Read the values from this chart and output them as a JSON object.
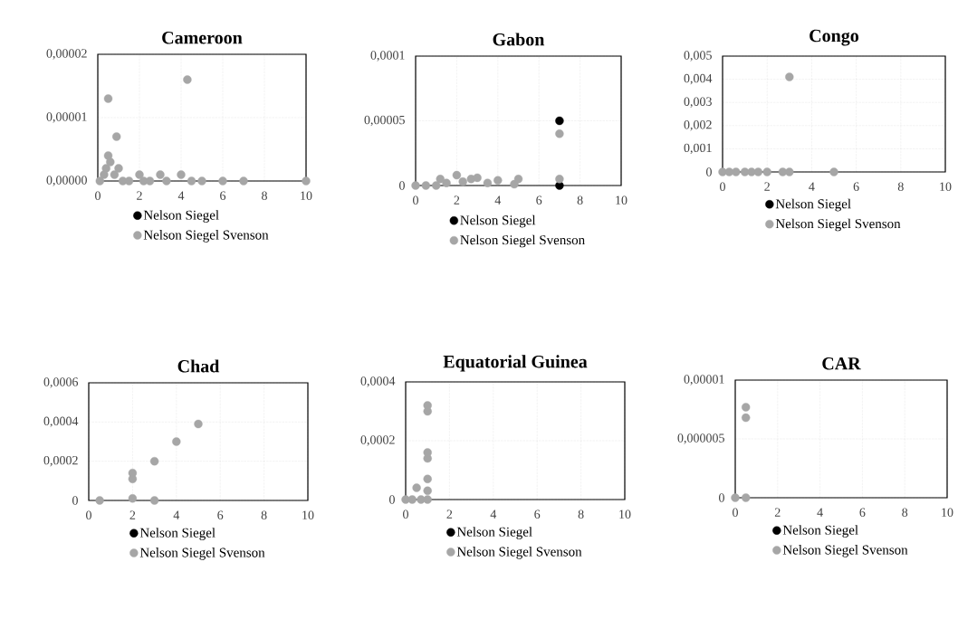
{
  "chart_data": [
    {
      "type": "scatter",
      "title": "Cameroon",
      "grid": true,
      "legend": "bottom",
      "xlim": [
        0,
        10
      ],
      "xticks": [
        0,
        2,
        4,
        6,
        8,
        10
      ],
      "ylim": [
        0,
        2e-05
      ],
      "yticks": [
        {
          "value": 0,
          "label": "0,00000"
        },
        {
          "value": 1e-05,
          "label": "0,00001"
        },
        {
          "value": 2e-05,
          "label": "0,00002"
        }
      ],
      "series": [
        {
          "name": "Nelson Siegel",
          "color": "#000000"
        },
        {
          "name": "Nelson Siegel Svenson",
          "color": "#a6a6a6",
          "x": [
            0.1,
            0.2,
            0.3,
            0.4,
            0.5,
            0.5,
            0.6,
            0.8,
            0.9,
            1,
            1.2,
            1.5,
            2,
            2.2,
            2.5,
            3,
            3.3,
            4,
            4.3,
            4.5,
            5,
            6,
            7,
            10
          ],
          "values": [
            0,
            null,
            1e-06,
            2e-06,
            4e-06,
            1.3e-05,
            3e-06,
            1e-06,
            7e-06,
            2e-06,
            0,
            0,
            1e-06,
            0,
            0,
            1e-06,
            0,
            1e-06,
            1.6e-05,
            0,
            0,
            0,
            0,
            0
          ]
        }
      ]
    },
    {
      "type": "scatter",
      "title": "Gabon",
      "grid": true,
      "legend": "bottom",
      "xlim": [
        0,
        10
      ],
      "xticks": [
        0,
        2,
        4,
        6,
        8,
        10
      ],
      "ylim": [
        0,
        0.0001
      ],
      "yticks": [
        0,
        {
          "value": 5e-05,
          "label": "0,00005"
        },
        {
          "value": 0.0001,
          "label": "0,0001"
        }
      ],
      "series": [
        {
          "name": "Nelson Siegel",
          "color": "#000000",
          "x": [
            7,
            7
          ],
          "values": [
            5e-05,
            0
          ]
        },
        {
          "name": "Nelson Siegel Svenson",
          "color": "#a6a6a6",
          "x": [
            0,
            0.5,
            1,
            1.2,
            1.5,
            2,
            2.3,
            2.7,
            3,
            3.5,
            4,
            4.8,
            5,
            7,
            7
          ],
          "values": [
            0,
            0,
            0,
            5e-06,
            2e-06,
            8e-06,
            3e-06,
            5e-06,
            6e-06,
            2e-06,
            4e-06,
            1e-06,
            5e-06,
            4e-05,
            5e-06
          ]
        }
      ]
    },
    {
      "type": "scatter",
      "title": "Congo",
      "grid": true,
      "legend": "bottom",
      "xlim": [
        0,
        10
      ],
      "xticks": [
        0,
        2,
        4,
        6,
        8,
        10
      ],
      "ylim": [
        0,
        0.005
      ],
      "yticks": [
        0,
        {
          "value": 0.001,
          "label": "0,001"
        },
        {
          "value": 0.002,
          "label": "0,002"
        },
        {
          "value": 0.003,
          "label": "0,003"
        },
        {
          "value": 0.004,
          "label": "0,004"
        },
        {
          "value": 0.005,
          "label": "0,005"
        }
      ],
      "series": [
        {
          "name": "Nelson Siegel",
          "color": "#000000"
        },
        {
          "name": "Nelson Siegel Svenson",
          "color": "#a6a6a6",
          "x": [
            0,
            0.3,
            0.6,
            1,
            1.3,
            1.6,
            2,
            2.7,
            3,
            3,
            5
          ],
          "values": [
            0,
            0,
            0,
            0,
            0,
            0,
            0,
            0,
            0.0041,
            0,
            0
          ]
        }
      ]
    },
    {
      "type": "scatter",
      "title": "Chad",
      "grid": true,
      "legend": "bottom",
      "xlim": [
        0,
        10
      ],
      "xticks": [
        0,
        2,
        4,
        6,
        8,
        10
      ],
      "ylim": [
        0,
        0.0006
      ],
      "yticks": [
        0,
        {
          "value": 0.0002,
          "label": "0,0002"
        },
        {
          "value": 0.0004,
          "label": "0,0004"
        },
        {
          "value": 0.0006,
          "label": "0,0006"
        }
      ],
      "series": [
        {
          "name": "Nelson Siegel",
          "color": "#000000"
        },
        {
          "name": "Nelson Siegel Svenson",
          "color": "#a6a6a6",
          "x": [
            0.5,
            2,
            2,
            2,
            3,
            3,
            4,
            5
          ],
          "values": [
            0,
            1e-05,
            0.00011,
            0.00014,
            0.0002,
            0,
            0.0003,
            0.00039
          ]
        }
      ]
    },
    {
      "type": "scatter",
      "title": "Equatorial Guinea",
      "grid": true,
      "legend": "bottom",
      "xlim": [
        0,
        10
      ],
      "xticks": [
        0,
        2,
        4,
        6,
        8,
        10
      ],
      "ylim": [
        0,
        0.0004
      ],
      "yticks": [
        0,
        {
          "value": 0.0002,
          "label": "0,0002"
        },
        {
          "value": 0.0004,
          "label": "0,0004"
        }
      ],
      "series": [
        {
          "name": "Nelson Siegel",
          "color": "#000000"
        },
        {
          "name": "Nelson Siegel Svenson",
          "color": "#a6a6a6",
          "x": [
            0,
            0.3,
            0.5,
            0.7,
            1,
            1,
            1,
            1,
            1,
            1,
            1
          ],
          "values": [
            0,
            0,
            4e-05,
            0,
            0,
            3e-05,
            7e-05,
            0.00014,
            0.00016,
            0.0003,
            0.00032
          ]
        }
      ]
    },
    {
      "type": "scatter",
      "title": "CAR",
      "grid": true,
      "legend": "bottom",
      "xlim": [
        0,
        10
      ],
      "xticks": [
        0,
        2,
        4,
        6,
        8,
        10
      ],
      "ylim": [
        0,
        1e-05
      ],
      "yticks": [
        0,
        {
          "value": 5e-06,
          "label": "0,000005"
        },
        {
          "value": 1e-05,
          "label": "0,00001"
        }
      ],
      "series": [
        {
          "name": "Nelson Siegel",
          "color": "#000000"
        },
        {
          "name": "Nelson Siegel Svenson",
          "color": "#a6a6a6",
          "x": [
            0,
            0.5,
            0.5,
            0.5
          ],
          "values": [
            0,
            0,
            6.8e-06,
            7.7e-06
          ]
        }
      ]
    }
  ]
}
